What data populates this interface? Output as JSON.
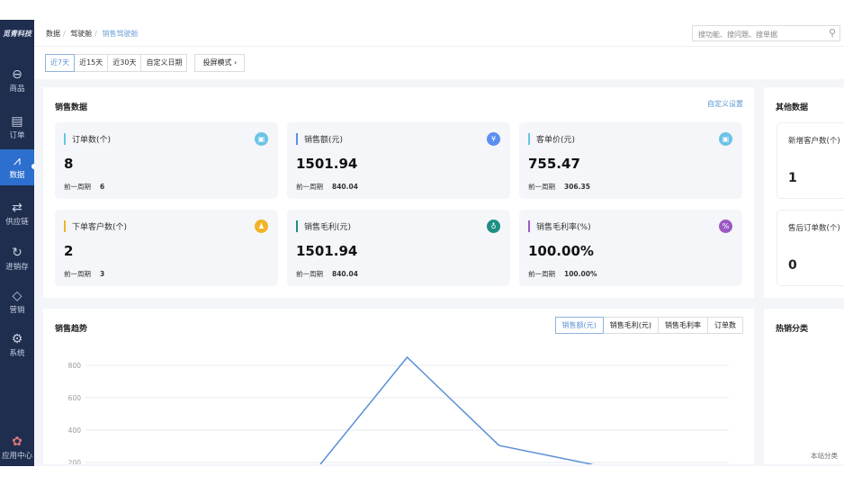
{
  "sidebar": {
    "logo": "觅青科技",
    "items": [
      {
        "label": "商品",
        "icon": "bag-icon"
      },
      {
        "label": "订单",
        "icon": "document-icon"
      },
      {
        "label": "数据",
        "icon": "chart-icon",
        "active": true
      },
      {
        "label": "供应链",
        "icon": "exchange-icon"
      },
      {
        "label": "进销存",
        "icon": "cycle-icon"
      },
      {
        "label": "营销",
        "icon": "tag-icon"
      },
      {
        "label": "系统",
        "icon": "gear-icon"
      },
      {
        "label": "应用中心",
        "icon": "apps-icon"
      }
    ]
  },
  "breadcrumb": [
    "数据",
    "驾驶舱",
    "销售驾驶舱"
  ],
  "search": {
    "placeholder": "搜功能、搜问题、搜单据"
  },
  "toolbar": {
    "ranges": [
      "近7天",
      "近15天",
      "近30天",
      "自定义日期"
    ],
    "selected": "近7天",
    "projection": "投屏模式"
  },
  "sales": {
    "title": "销售数据",
    "custom": "自定义设置",
    "prev_label": "前一周期",
    "cards": [
      {
        "label": "订单数(个)",
        "value": "8",
        "prev": "6",
        "color": "#6cc3e6",
        "icon": "clipboard-icon",
        "glyph": "▣"
      },
      {
        "label": "销售额(元)",
        "value": "1501.94",
        "prev": "840.04",
        "color": "#5b8ff0",
        "icon": "yen-icon",
        "glyph": "¥"
      },
      {
        "label": "客单价(元)",
        "value": "755.47",
        "prev": "306.35",
        "color": "#6cc3e6",
        "icon": "receipt-icon",
        "glyph": "▣"
      },
      {
        "label": "下单客户数(个)",
        "value": "2",
        "prev": "3",
        "color": "#f0b429",
        "icon": "user-icon",
        "glyph": "♟"
      },
      {
        "label": "销售毛利(元)",
        "value": "1501.94",
        "prev": "840.04",
        "color": "#1e8f85",
        "icon": "moneybag-icon",
        "glyph": "♁"
      },
      {
        "label": "销售毛利率(%)",
        "value": "100.00%",
        "prev": "100.00%",
        "color": "#9b59c4",
        "icon": "percent-icon",
        "glyph": "%"
      }
    ]
  },
  "other": {
    "title": "其他数据",
    "cards": [
      {
        "label": "新增客户数(个)",
        "value": "1"
      },
      {
        "label": "售后订单数(个)",
        "value": "0"
      }
    ]
  },
  "trend": {
    "title": "销售趋势",
    "tabs": [
      "销售额(元)",
      "销售毛利(元)",
      "销售毛利率",
      "订单数"
    ],
    "selected": "销售额(元)"
  },
  "hot": {
    "title": "热销分类",
    "note": "本站分类"
  },
  "chart_data": {
    "type": "line",
    "series": [
      {
        "values": [
          0,
          0,
          150,
          850,
          305,
          190,
          0
        ]
      }
    ],
    "yticks": [
      "800",
      "600",
      "400",
      "200"
    ],
    "ylim": [
      0,
      900
    ],
    "grid": true,
    "color": "#5b8fd6"
  }
}
